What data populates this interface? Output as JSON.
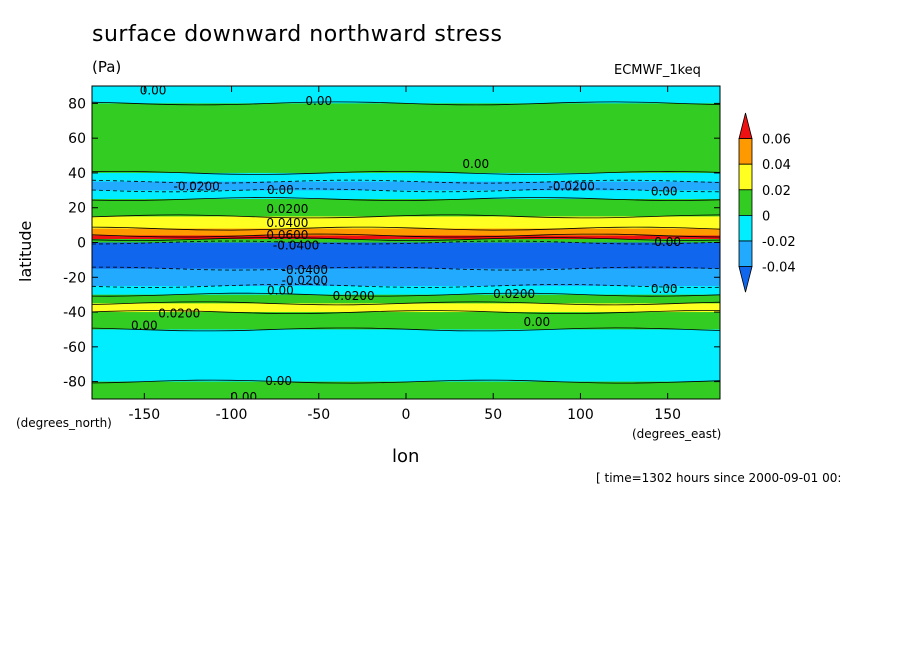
{
  "chart_data": {
    "type": "heatmap",
    "title": "surface downward northward stress",
    "units": "(Pa)",
    "dataset": "ECMWF_1keq",
    "xlabel": "lon",
    "ylabel": "latitude",
    "xunits": "(degrees_east)",
    "yunits": "(degrees_north)",
    "footer": "[ time=1302 hours since 2000-09-01 00:",
    "xlim": [
      -180,
      180
    ],
    "ylim": [
      -90,
      90
    ],
    "x_ticks": [
      -150,
      -100,
      -50,
      0,
      50,
      100,
      150
    ],
    "x_tick_labels": [
      "-150",
      "-100",
      "-50",
      "0",
      "50",
      "100",
      "150"
    ],
    "y_ticks": [
      -80,
      -60,
      -40,
      -20,
      0,
      20,
      40,
      60,
      80
    ],
    "y_tick_labels": [
      "-80",
      "-60",
      "-40",
      "-20",
      "0",
      "20",
      "40",
      "60",
      "80"
    ],
    "zonal_profile": [
      {
        "lat": 90,
        "value": -0.005
      },
      {
        "lat": 80,
        "value": 0.005
      },
      {
        "lat": 70,
        "value": 0.008
      },
      {
        "lat": 60,
        "value": 0.012
      },
      {
        "lat": 50,
        "value": 0.008
      },
      {
        "lat": 45,
        "value": 0.002
      },
      {
        "lat": 40,
        "value": -0.015
      },
      {
        "lat": 35,
        "value": -0.025
      },
      {
        "lat": 30,
        "value": -0.015
      },
      {
        "lat": 25,
        "value": 0.002
      },
      {
        "lat": 20,
        "value": 0.015
      },
      {
        "lat": 15,
        "value": 0.025
      },
      {
        "lat": 12,
        "value": 0.035
      },
      {
        "lat": 8,
        "value": 0.045
      },
      {
        "lat": 4,
        "value": 0.065
      },
      {
        "lat": 2,
        "value": 0.0
      },
      {
        "lat": 0,
        "value": -0.045
      },
      {
        "lat": -5,
        "value": -0.055
      },
      {
        "lat": -10,
        "value": -0.05
      },
      {
        "lat": -15,
        "value": -0.035
      },
      {
        "lat": -20,
        "value": -0.025
      },
      {
        "lat": -25,
        "value": -0.005
      },
      {
        "lat": -30,
        "value": 0.015
      },
      {
        "lat": -35,
        "value": 0.025
      },
      {
        "lat": -40,
        "value": 0.018
      },
      {
        "lat": -45,
        "value": 0.008
      },
      {
        "lat": -50,
        "value": -0.005
      },
      {
        "lat": -60,
        "value": -0.015
      },
      {
        "lat": -70,
        "value": -0.01
      },
      {
        "lat": -80,
        "value": 0.002
      },
      {
        "lat": -90,
        "value": 0.005
      }
    ],
    "contour_labels": [
      {
        "text": "0.00",
        "lon": -145,
        "lat": 87
      },
      {
        "text": "0.00",
        "lon": -50,
        "lat": 81
      },
      {
        "text": "0.00",
        "lon": 40,
        "lat": 45
      },
      {
        "text": "-0.0200",
        "lon": -120,
        "lat": 32
      },
      {
        "text": "-0.0200",
        "lon": 95,
        "lat": 32
      },
      {
        "text": "0.00",
        "lon": -72,
        "lat": 30
      },
      {
        "text": "0.00",
        "lon": 148,
        "lat": 29
      },
      {
        "text": "0.0200",
        "lon": -68,
        "lat": 19
      },
      {
        "text": "0.0400",
        "lon": -68,
        "lat": 11
      },
      {
        "text": "0.0600",
        "lon": -68,
        "lat": 4
      },
      {
        "text": "-0.0400",
        "lon": -63,
        "lat": -2
      },
      {
        "text": "0.00",
        "lon": 150,
        "lat": 0
      },
      {
        "text": "-0.0400",
        "lon": -58,
        "lat": -16
      },
      {
        "text": "-0.0200",
        "lon": -58,
        "lat": -22
      },
      {
        "text": "0.00",
        "lon": -72,
        "lat": -28
      },
      {
        "text": "0.0200",
        "lon": -30,
        "lat": -31
      },
      {
        "text": "0.0200",
        "lon": 62,
        "lat": -30
      },
      {
        "text": "0.00",
        "lon": 148,
        "lat": -27
      },
      {
        "text": "0.0200",
        "lon": -130,
        "lat": -41
      },
      {
        "text": "0.00",
        "lon": -150,
        "lat": -48
      },
      {
        "text": "0.00",
        "lon": 75,
        "lat": -46
      },
      {
        "text": "0.00",
        "lon": -73,
        "lat": -80
      },
      {
        "text": "0.00",
        "lon": -93,
        "lat": -89
      }
    ],
    "legend": {
      "placement": "right",
      "levels": [
        "0.06",
        "0.04",
        "0.02",
        "0",
        "-0.02",
        "-0.04"
      ],
      "bins": [
        {
          "from": 0.06,
          "to": null,
          "color": "#ee1111"
        },
        {
          "from": 0.04,
          "to": 0.06,
          "color": "#ff9900"
        },
        {
          "from": 0.02,
          "to": 0.04,
          "color": "#ffff22"
        },
        {
          "from": 0.0,
          "to": 0.02,
          "color": "#33cc22"
        },
        {
          "from": -0.02,
          "to": 0.0,
          "color": "#00eeff"
        },
        {
          "from": -0.04,
          "to": -0.02,
          "color": "#22aaff"
        },
        {
          "from": null,
          "to": -0.04,
          "color": "#1166ee"
        }
      ]
    }
  }
}
